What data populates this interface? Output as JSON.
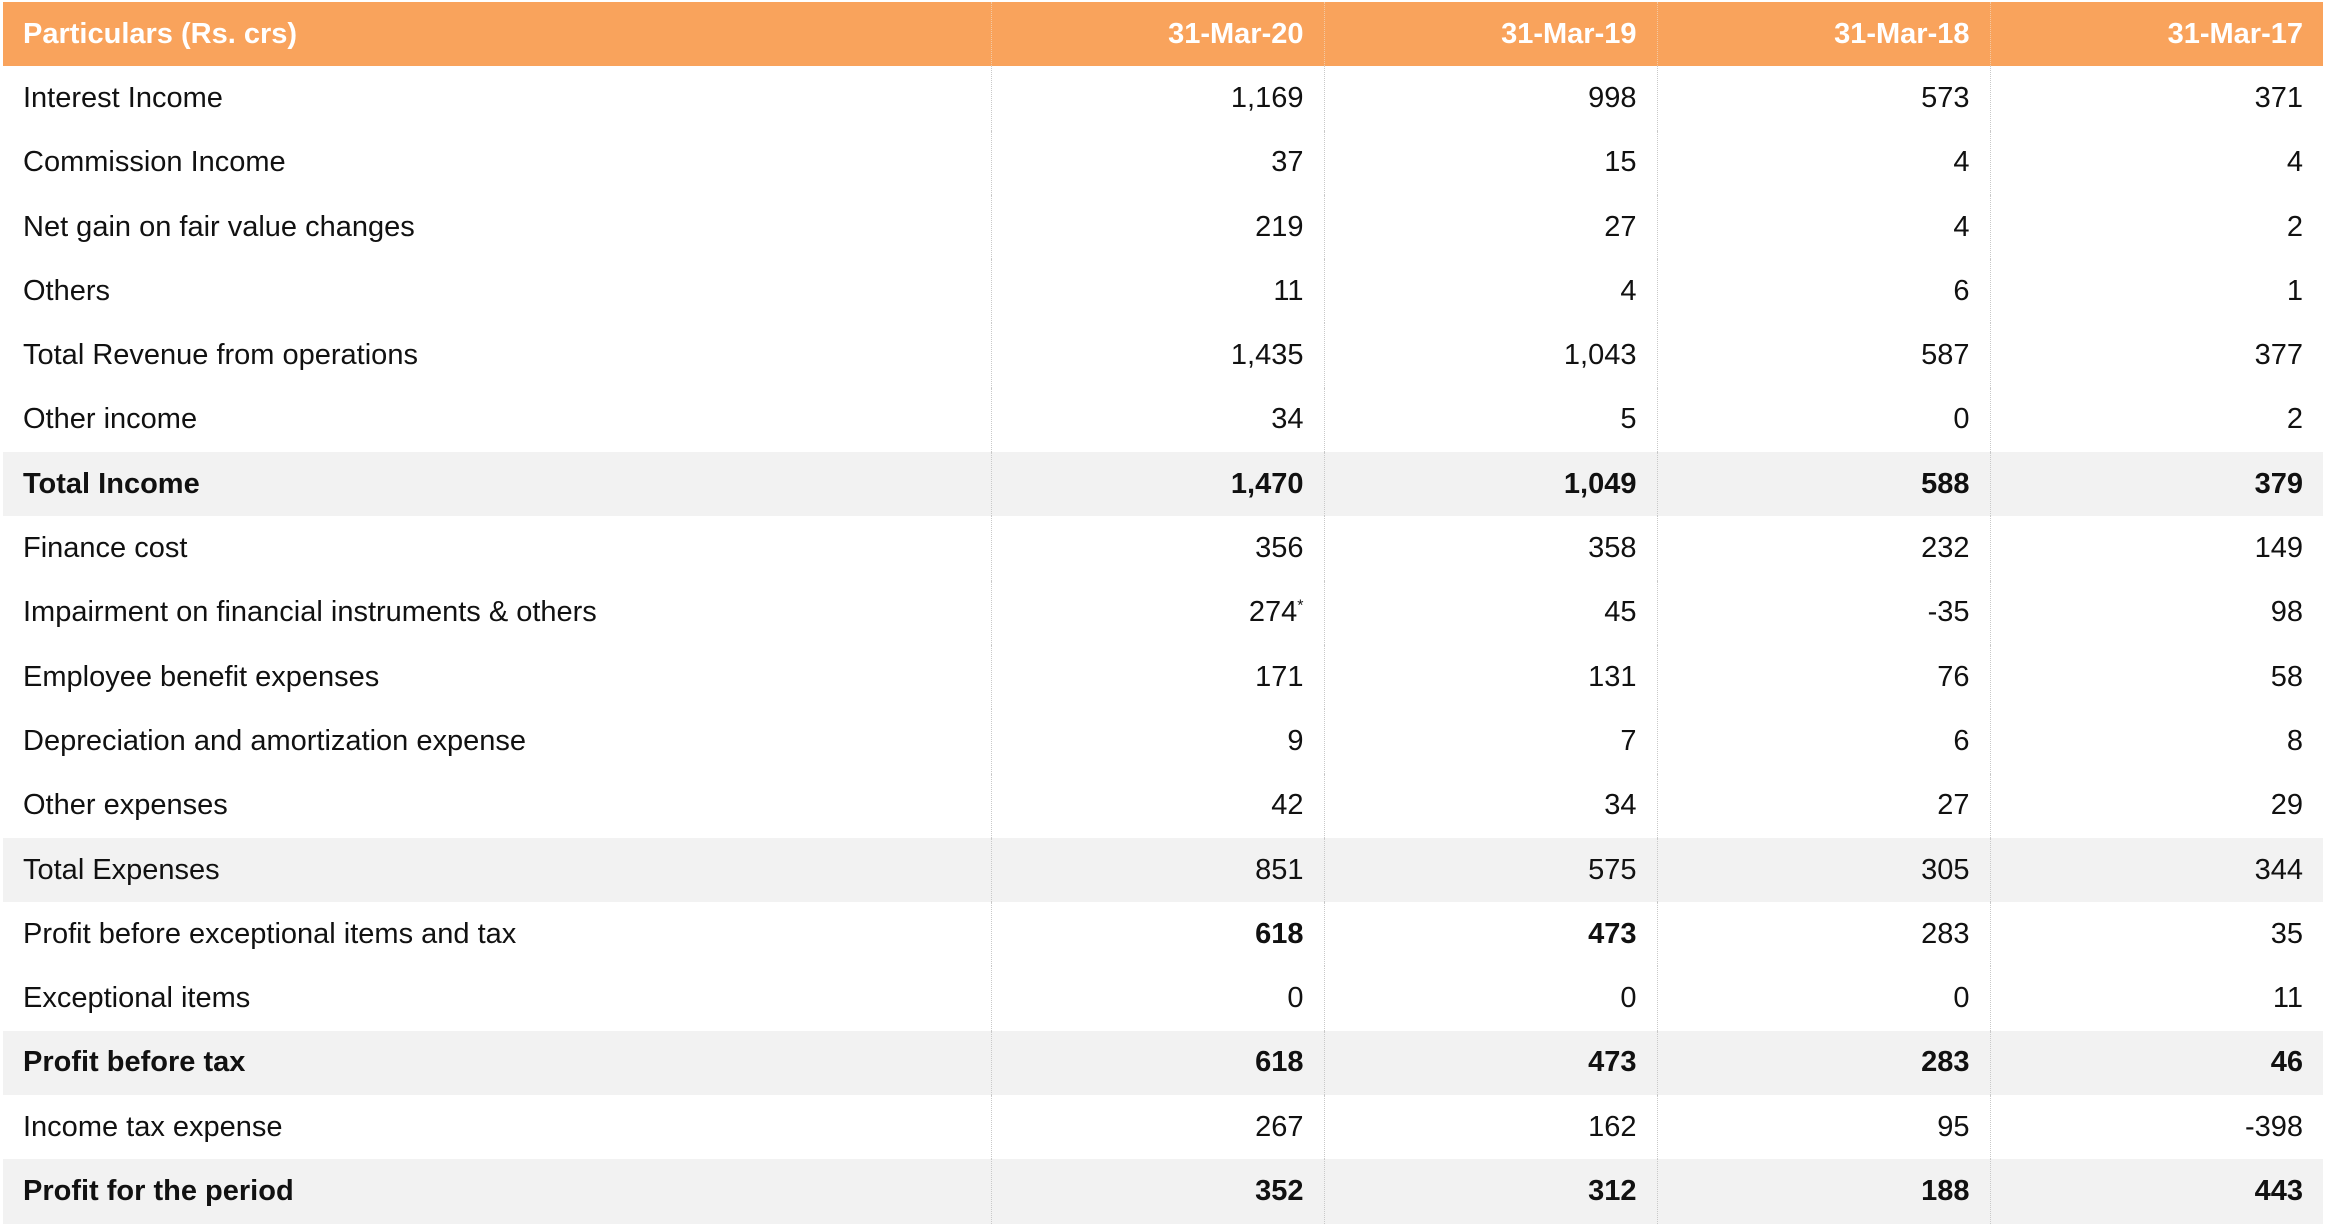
{
  "table": {
    "headers": [
      "Particulars (Rs. crs)",
      "31-Mar-20",
      "31-Mar-19",
      "31-Mar-18",
      "31-Mar-17"
    ],
    "rows": [
      {
        "label": "Interest Income",
        "values": [
          "1,169",
          "998",
          "573",
          "371"
        ],
        "shaded": false,
        "bold_label": false,
        "bold_values": [
          false,
          false,
          false,
          false
        ]
      },
      {
        "label": "Commission Income",
        "values": [
          "37",
          "15",
          "4",
          "4"
        ],
        "shaded": false,
        "bold_label": false,
        "bold_values": [
          false,
          false,
          false,
          false
        ]
      },
      {
        "label": "Net gain on fair value changes",
        "values": [
          "219",
          "27",
          "4",
          "2"
        ],
        "shaded": false,
        "bold_label": false,
        "bold_values": [
          false,
          false,
          false,
          false
        ]
      },
      {
        "label": "Others",
        "values": [
          "11",
          "4",
          "6",
          "1"
        ],
        "shaded": false,
        "bold_label": false,
        "bold_values": [
          false,
          false,
          false,
          false
        ]
      },
      {
        "label": "Total Revenue from operations",
        "values": [
          "1,435",
          "1,043",
          "587",
          "377"
        ],
        "shaded": false,
        "bold_label": false,
        "bold_values": [
          false,
          false,
          false,
          false
        ]
      },
      {
        "label": "Other income",
        "values": [
          "34",
          "5",
          "0",
          "2"
        ],
        "shaded": false,
        "bold_label": false,
        "bold_values": [
          false,
          false,
          false,
          false
        ]
      },
      {
        "label": "Total Income",
        "values": [
          "1,470",
          "1,049",
          "588",
          "379"
        ],
        "shaded": true,
        "bold_label": true,
        "bold_values": [
          true,
          true,
          true,
          true
        ]
      },
      {
        "label": "Finance cost",
        "values": [
          "356",
          "358",
          "232",
          "149"
        ],
        "shaded": false,
        "bold_label": false,
        "bold_values": [
          false,
          false,
          false,
          false
        ]
      },
      {
        "label": "Impairment on financial instruments & others",
        "values": [
          "274",
          "45",
          "-35",
          "98"
        ],
        "superscripts": [
          "*",
          "",
          "",
          ""
        ],
        "shaded": false,
        "bold_label": false,
        "bold_values": [
          false,
          false,
          false,
          false
        ]
      },
      {
        "label": "Employee benefit expenses",
        "values": [
          "171",
          "131",
          "76",
          "58"
        ],
        "shaded": false,
        "bold_label": false,
        "bold_values": [
          false,
          false,
          false,
          false
        ]
      },
      {
        "label": "Depreciation and amortization expense",
        "values": [
          "9",
          "7",
          "6",
          "8"
        ],
        "shaded": false,
        "bold_label": false,
        "bold_values": [
          false,
          false,
          false,
          false
        ]
      },
      {
        "label": "Other expenses",
        "values": [
          "42",
          "34",
          "27",
          "29"
        ],
        "shaded": false,
        "bold_label": false,
        "bold_values": [
          false,
          false,
          false,
          false
        ]
      },
      {
        "label": "Total Expenses",
        "values": [
          "851",
          "575",
          "305",
          "344"
        ],
        "shaded": true,
        "bold_label": false,
        "bold_values": [
          false,
          false,
          false,
          false
        ]
      },
      {
        "label": "Profit before exceptional items and tax",
        "values": [
          "618",
          "473",
          "283",
          "35"
        ],
        "shaded": false,
        "bold_label": false,
        "bold_values": [
          true,
          true,
          false,
          false
        ]
      },
      {
        "label": "Exceptional items",
        "values": [
          "0",
          "0",
          "0",
          "11"
        ],
        "shaded": false,
        "bold_label": false,
        "bold_values": [
          false,
          false,
          false,
          false
        ]
      },
      {
        "label": "Profit before tax",
        "values": [
          "618",
          "473",
          "283",
          "46"
        ],
        "shaded": true,
        "bold_label": true,
        "bold_values": [
          true,
          true,
          true,
          true
        ]
      },
      {
        "label": "Income tax expense",
        "values": [
          "267",
          "162",
          "95",
          "-398"
        ],
        "shaded": false,
        "bold_label": false,
        "bold_values": [
          false,
          false,
          false,
          false
        ]
      },
      {
        "label": "Profit for the period",
        "values": [
          "352",
          "312",
          "188",
          "443"
        ],
        "shaded": true,
        "bold_label": true,
        "bold_values": [
          true,
          true,
          true,
          true
        ]
      }
    ]
  },
  "colors": {
    "header_bg": "#f9a35c",
    "header_text": "#ffffff",
    "shaded_row": "#f2f2f2",
    "text": "#111111"
  }
}
